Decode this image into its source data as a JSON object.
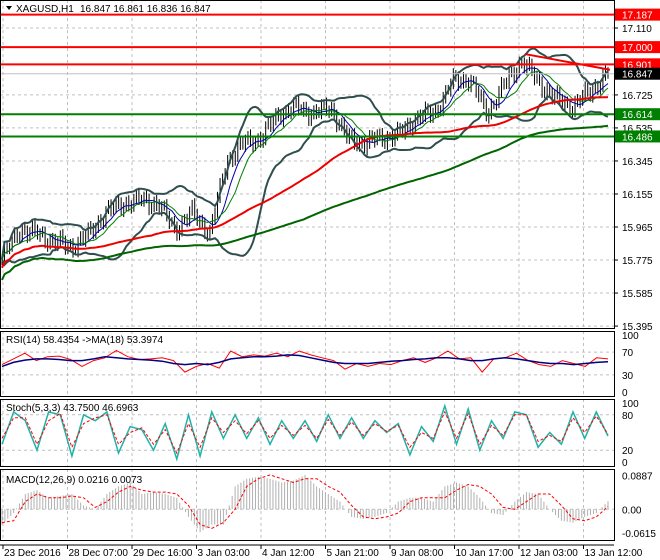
{
  "chart_data": [
    {
      "type": "line",
      "title": "XAGUSD,H1",
      "ohlc_readout": "16.847 16.861 16.836 16.847",
      "y_ticks": [
        "17.110",
        "16.725",
        "16.535",
        "16.345",
        "16.155",
        "15.965",
        "15.775",
        "15.585",
        "15.395"
      ],
      "ylim": [
        15.395,
        17.187
      ],
      "x_ticks": [
        "23 Dec 2016",
        "28 Dec 07:00",
        "29 Dec 16:00",
        "3 Jan 03:00",
        "4 Jan 12:00",
        "5 Jan 21:00",
        "9 Jan 08:00",
        "10 Jan 17:00",
        "12 Jan 03:00",
        "13 Jan 12:00"
      ],
      "close": [
        15.78,
        15.95,
        15.93,
        15.88,
        15.85,
        15.92,
        16.05,
        16.1,
        16.12,
        16.1,
        15.95,
        16.05,
        15.93,
        16.35,
        16.45,
        16.48,
        16.62,
        16.65,
        16.62,
        16.65,
        16.47,
        16.45,
        16.48,
        16.5,
        16.6,
        16.62,
        16.8,
        16.82,
        16.62,
        16.78,
        16.92,
        16.8,
        16.7,
        16.66,
        16.75,
        16.847
      ],
      "horizontal_levels": [
        {
          "value": "17.187",
          "color": "#ff0000"
        },
        {
          "value": "17.000",
          "color": "#ff0000"
        },
        {
          "value": "16.901",
          "color": "#ff0000"
        },
        {
          "value": "16.614",
          "color": "#008000"
        },
        {
          "value": "16.486",
          "color": "#008000"
        }
      ],
      "current_price": "16.847",
      "grid": true
    },
    {
      "type": "line",
      "title": "RSI(14) 58.4354  ->MA(18) 53.3974",
      "y_ticks": [
        "100",
        "70",
        "30",
        "0"
      ],
      "ylim": [
        0,
        100
      ],
      "rsi": [
        48,
        58,
        68,
        55,
        62,
        63,
        57,
        45,
        55,
        60,
        73,
        62,
        57,
        58,
        60,
        55,
        35,
        45,
        50,
        42,
        72,
        62,
        65,
        63,
        68,
        62,
        72,
        65,
        60,
        55,
        40,
        50,
        45,
        50,
        48,
        55,
        60,
        52,
        60,
        72,
        58,
        60,
        35,
        58,
        60,
        68,
        55,
        48,
        45,
        55,
        50,
        45,
        60,
        58
      ],
      "ma": [
        45,
        52,
        56,
        58,
        58,
        57,
        55,
        55,
        58,
        62,
        60,
        58,
        57,
        56,
        54,
        50,
        48,
        50,
        48,
        52,
        58,
        60,
        62,
        62,
        63,
        65,
        64,
        60,
        56,
        52,
        50,
        50,
        50,
        52,
        54,
        55,
        57,
        58,
        60,
        60,
        58,
        55,
        55,
        58,
        60,
        58,
        55,
        52,
        50,
        50,
        48,
        50,
        52,
        53
      ]
    },
    {
      "type": "line",
      "title": "Stoch(5,3,3) 43.7500 46.6963",
      "y_ticks": [
        "100",
        "80",
        "20",
        "0"
      ],
      "ylim": [
        0,
        100
      ],
      "main": [
        30,
        85,
        70,
        20,
        85,
        80,
        10,
        80,
        70,
        85,
        15,
        60,
        55,
        20,
        65,
        5,
        80,
        10,
        85,
        40,
        80,
        40,
        75,
        30,
        70,
        40,
        70,
        35,
        80,
        40,
        75,
        40,
        70,
        50,
        65,
        12,
        60,
        35,
        95,
        30,
        90,
        20,
        70,
        40,
        85,
        80,
        25,
        50,
        30,
        85,
        40,
        85,
        44
      ],
      "signal": [
        40,
        75,
        75,
        30,
        70,
        82,
        25,
        65,
        75,
        80,
        30,
        50,
        58,
        30,
        55,
        15,
        65,
        25,
        75,
        50,
        70,
        48,
        70,
        40,
        62,
        45,
        62,
        40,
        72,
        45,
        68,
        45,
        65,
        52,
        62,
        25,
        50,
        40,
        85,
        40,
        82,
        30,
        62,
        45,
        80,
        80,
        35,
        45,
        35,
        75,
        50,
        78,
        47
      ]
    },
    {
      "type": "bar",
      "title": "MACD(12,26,9) 0.0216 0.0073",
      "y_ticks": [
        "0.0887",
        "0.00",
        "-0.0615"
      ],
      "ylim": [
        -0.07,
        0.095
      ],
      "histogram": [
        -0.04,
        -0.01,
        0.04,
        0.05,
        0.03,
        0.035,
        0.04,
        0.01,
        0.0,
        0.04,
        0.06,
        0.07,
        0.04,
        0.045,
        0.04,
        0.03,
        -0.02,
        -0.06,
        -0.04,
        -0.04,
        0.06,
        0.08,
        0.085,
        0.08,
        0.07,
        0.075,
        0.09,
        0.06,
        0.04,
        0.02,
        -0.02,
        -0.025,
        -0.02,
        -0.01,
        0.02,
        0.03,
        0.03,
        0.02,
        0.06,
        0.07,
        0.06,
        0.03,
        -0.01,
        -0.015,
        0.02,
        0.045,
        0.04,
        0.0,
        -0.03,
        -0.035,
        -0.02,
        -0.01,
        0.021
      ],
      "signal": [
        -0.035,
        -0.03,
        0.02,
        0.04,
        0.03,
        0.03,
        0.035,
        0.03,
        0.005,
        0.02,
        0.045,
        0.06,
        0.05,
        0.045,
        0.045,
        0.04,
        0.01,
        -0.04,
        -0.05,
        -0.035,
        0.0,
        0.06,
        0.08,
        0.09,
        0.08,
        0.07,
        0.08,
        0.08,
        0.06,
        0.045,
        0.01,
        -0.02,
        -0.025,
        -0.02,
        -0.01,
        0.02,
        0.03,
        0.03,
        0.03,
        0.05,
        0.065,
        0.06,
        0.04,
        0.005,
        0.0,
        0.02,
        0.04,
        0.04,
        0.01,
        -0.025,
        -0.03,
        -0.02,
        0.007
      ]
    }
  ]
}
